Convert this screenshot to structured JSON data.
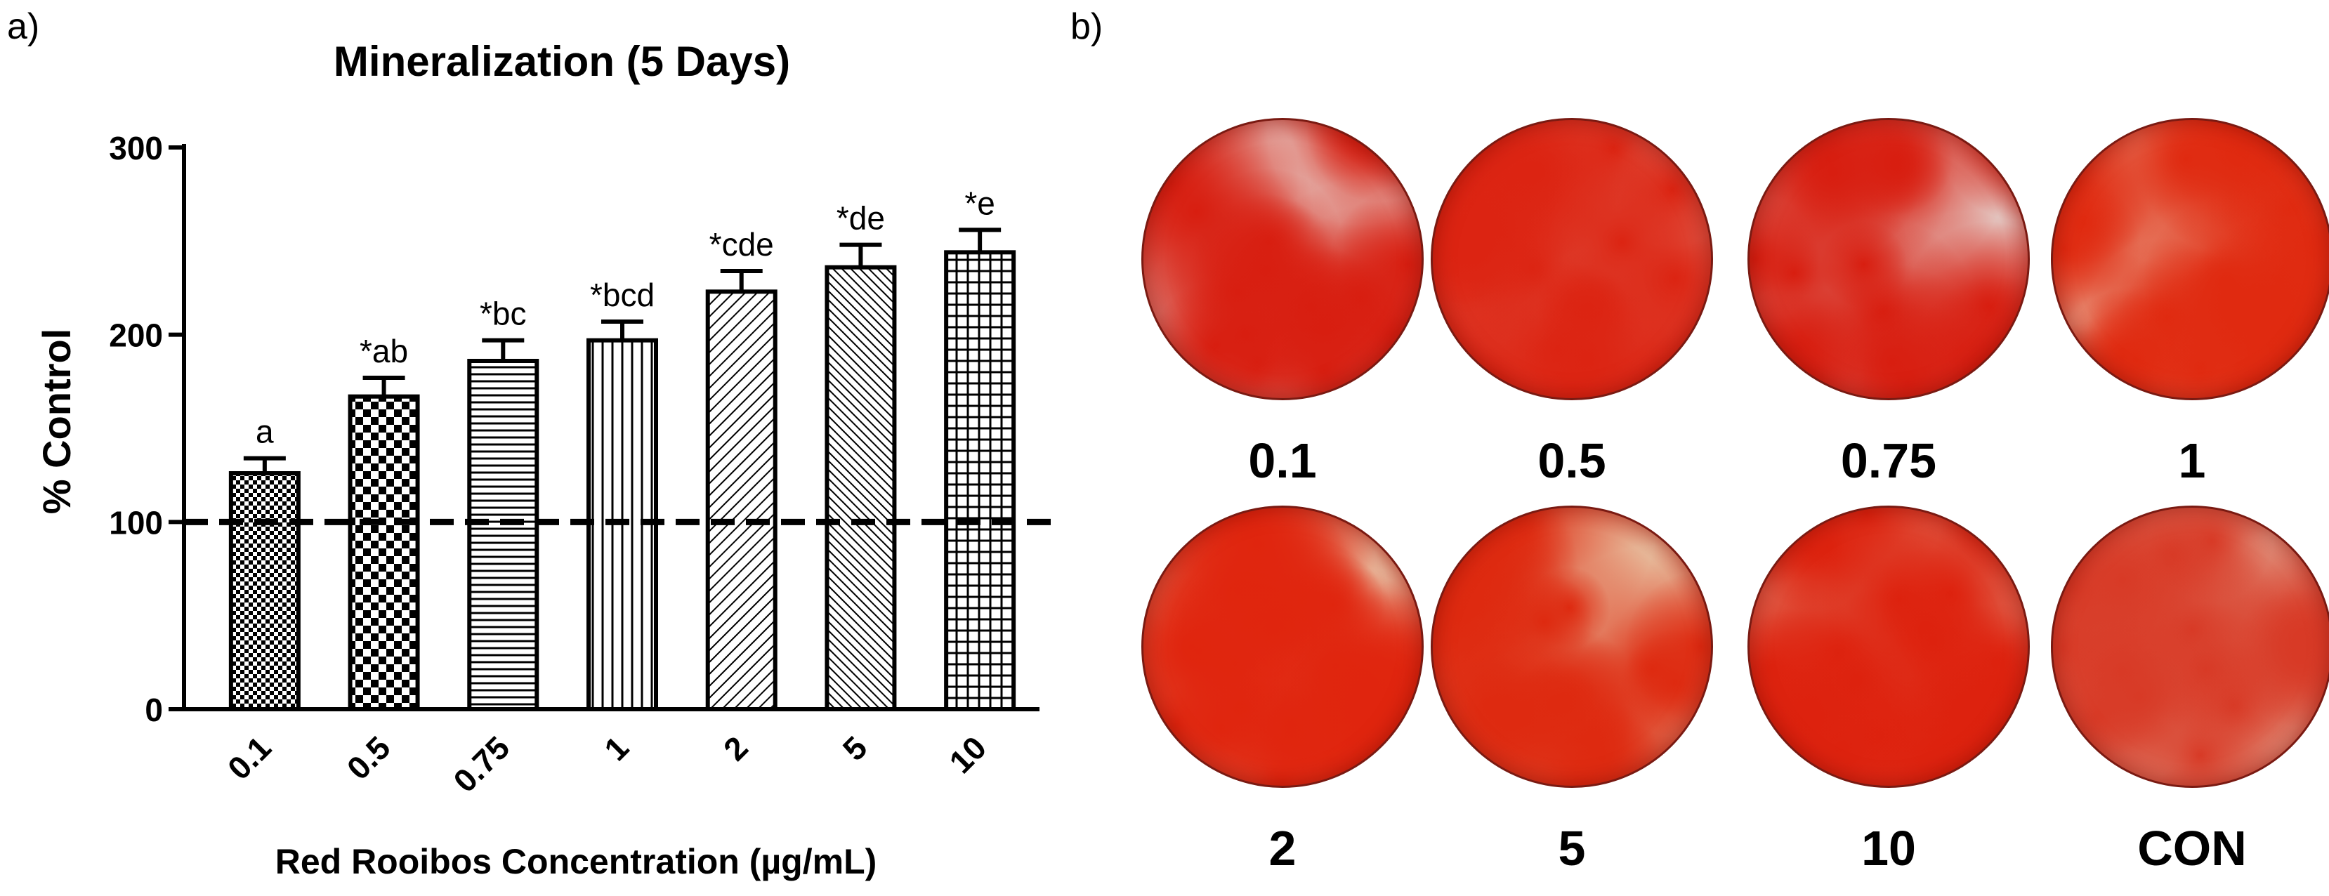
{
  "panel_a": {
    "label": "a)",
    "chart_data": {
      "type": "bar",
      "title": "Mineralization (5 Days)",
      "xlabel": "Red Rooibos Concentration (µg/mL)",
      "ylabel": "% Control",
      "categories": [
        "0.1",
        "0.5",
        "0.75",
        "1",
        "2",
        "5",
        "10"
      ],
      "values": [
        126,
        167,
        186,
        197,
        223,
        236,
        244
      ],
      "errors": [
        8,
        10,
        11,
        10,
        11,
        12,
        12
      ],
      "annotations": [
        "a",
        "*ab",
        "*bc",
        "*bcd",
        "*cde",
        "*de",
        "*e"
      ],
      "bar_patterns": [
        "fine-checker",
        "coarse-checker",
        "horizontal-lines",
        "vertical-lines",
        "diagonal-lines",
        "diagonal-dense",
        "grid"
      ],
      "ylim": [
        0,
        300
      ],
      "yticks": [
        0,
        100,
        200,
        300
      ],
      "reference_line": 100,
      "grid": false
    }
  },
  "panel_b": {
    "label": "b)",
    "wells": [
      {
        "label": "0.1",
        "base_color": "#e6c6c0",
        "stain_color": "#d81e10",
        "stain_density": 0.35
      },
      {
        "label": "0.5",
        "base_color": "#e8c2b4",
        "stain_color": "#dc2412",
        "stain_density": 0.6
      },
      {
        "label": "0.75",
        "base_color": "#e4c9c4",
        "stain_color": "#d81e10",
        "stain_density": 0.4
      },
      {
        "label": "1",
        "base_color": "#ecc8b0",
        "stain_color": "#e02a10",
        "stain_density": 0.65
      },
      {
        "label": "2",
        "base_color": "#e9c3a6",
        "stain_color": "#e0250e",
        "stain_density": 0.7
      },
      {
        "label": "5",
        "base_color": "#e8c8a8",
        "stain_color": "#de2a10",
        "stain_density": 0.55
      },
      {
        "label": "10",
        "base_color": "#e7c0a8",
        "stain_color": "#dd220e",
        "stain_density": 0.75
      },
      {
        "label": "CON",
        "base_color": "#e6c2ad",
        "stain_color": "#d83a26",
        "stain_density": 0.3
      }
    ]
  }
}
